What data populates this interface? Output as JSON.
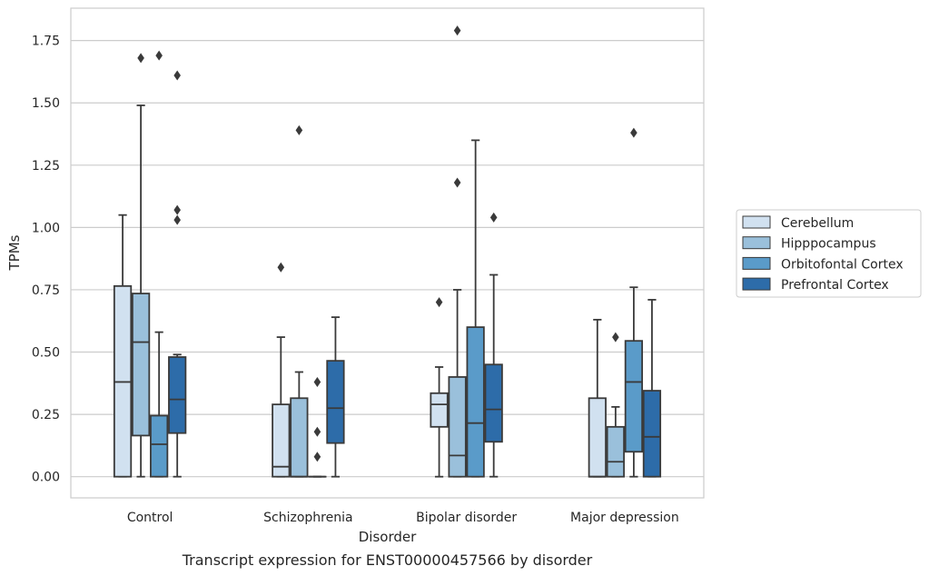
{
  "chart_data": {
    "type": "box",
    "caption": "Transcript expression for ENST00000457566 by disorder",
    "xlabel": "Disorder",
    "ylabel": "TPMs",
    "ylim": [
      -0.085,
      1.88
    ],
    "yticks": [
      0.0,
      0.25,
      0.5,
      0.75,
      1.0,
      1.25,
      1.5,
      1.75
    ],
    "ytick_labels": [
      "0.00",
      "0.25",
      "0.50",
      "0.75",
      "1.00",
      "1.25",
      "1.50",
      "1.75"
    ],
    "grid": "horizontal",
    "legend_position": "right",
    "categories": [
      "Control",
      "Schizophrenia",
      "Bipolar disorder",
      "Major depression"
    ],
    "series": [
      {
        "name": "Cerebellum",
        "color": "#d1e1f0",
        "boxes": [
          {
            "whislo": 0.0,
            "q1": 0.0,
            "med": 0.38,
            "q3": 0.765,
            "whishi": 1.05,
            "fliers": []
          },
          {
            "whislo": 0.0,
            "q1": 0.0,
            "med": 0.04,
            "q3": 0.29,
            "whishi": 0.56,
            "fliers": [
              0.84
            ]
          },
          {
            "whislo": 0.0,
            "q1": 0.2,
            "med": 0.29,
            "q3": 0.335,
            "whishi": 0.44,
            "fliers": [
              0.7
            ]
          },
          {
            "whislo": 0.0,
            "q1": 0.0,
            "med": 0.0,
            "q3": 0.315,
            "whishi": 0.63,
            "fliers": []
          }
        ]
      },
      {
        "name": "Hipppocampus",
        "color": "#9ac0db",
        "boxes": [
          {
            "whislo": 0.0,
            "q1": 0.165,
            "med": 0.54,
            "q3": 0.735,
            "whishi": 1.49,
            "fliers": [
              1.68
            ]
          },
          {
            "whislo": 0.0,
            "q1": 0.0,
            "med": 0.0,
            "q3": 0.315,
            "whishi": 0.42,
            "fliers": [
              1.39
            ]
          },
          {
            "whislo": 0.0,
            "q1": 0.0,
            "med": 0.085,
            "q3": 0.4,
            "whishi": 0.75,
            "fliers": [
              1.18,
              1.79
            ]
          },
          {
            "whislo": 0.0,
            "q1": 0.0,
            "med": 0.06,
            "q3": 0.2,
            "whishi": 0.28,
            "fliers": [
              0.56
            ]
          }
        ]
      },
      {
        "name": "Orbitofontal Cortex",
        "color": "#5a9bc9",
        "boxes": [
          {
            "whislo": 0.0,
            "q1": 0.0,
            "med": 0.13,
            "q3": 0.245,
            "whishi": 0.58,
            "fliers": [
              1.69
            ]
          },
          {
            "whislo": 0.0,
            "q1": 0.0,
            "med": 0.0,
            "q3": 0.0,
            "whishi": 0.0,
            "fliers": [
              0.08,
              0.18,
              0.38
            ]
          },
          {
            "whislo": 0.0,
            "q1": 0.0,
            "med": 0.215,
            "q3": 0.6,
            "whishi": 1.35,
            "fliers": []
          },
          {
            "whislo": 0.0,
            "q1": 0.1,
            "med": 0.38,
            "q3": 0.545,
            "whishi": 0.76,
            "fliers": [
              1.38
            ]
          }
        ]
      },
      {
        "name": "Prefrontal Cortex",
        "color": "#2d6ca9",
        "boxes": [
          {
            "whislo": 0.0,
            "q1": 0.175,
            "med": 0.31,
            "q3": 0.48,
            "whishi": 0.49,
            "fliers": [
              1.03,
              1.07,
              1.61
            ]
          },
          {
            "whislo": 0.0,
            "q1": 0.135,
            "med": 0.275,
            "q3": 0.465,
            "whishi": 0.64,
            "fliers": []
          },
          {
            "whislo": 0.0,
            "q1": 0.14,
            "med": 0.27,
            "q3": 0.45,
            "whishi": 0.81,
            "fliers": [
              1.04
            ]
          },
          {
            "whislo": 0.0,
            "q1": 0.0,
            "med": 0.16,
            "q3": 0.345,
            "whishi": 0.71,
            "fliers": []
          }
        ]
      }
    ]
  }
}
